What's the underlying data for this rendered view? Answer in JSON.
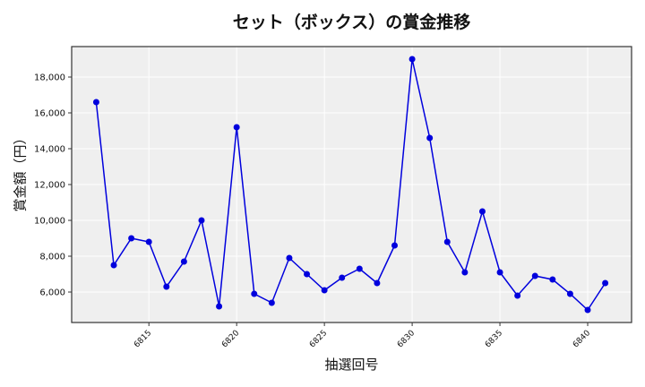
{
  "chart_data": {
    "type": "line",
    "title": "セット（ボックス）の賞金推移",
    "xlabel": "抽選回号",
    "ylabel": "賞金額（円）",
    "x": [
      6812,
      6813,
      6814,
      6815,
      6816,
      6817,
      6818,
      6819,
      6820,
      6821,
      6822,
      6823,
      6824,
      6825,
      6826,
      6827,
      6828,
      6829,
      6830,
      6831,
      6832,
      6833,
      6834,
      6835,
      6836,
      6837,
      6838,
      6839,
      6840,
      6841
    ],
    "series": [
      {
        "name": "賞金額",
        "color": "#0000dd",
        "values": [
          16600,
          7500,
          9000,
          8800,
          6300,
          7700,
          10000,
          5200,
          15200,
          5900,
          5400,
          7900,
          7000,
          6100,
          6800,
          7300,
          6500,
          8600,
          19000,
          14600,
          8800,
          7100,
          10500,
          7100,
          5800,
          6900,
          6700,
          5900,
          5000,
          6500
        ]
      }
    ],
    "xticks": [
      6815,
      6820,
      6825,
      6830,
      6835,
      6840
    ],
    "yticks": [
      6000,
      8000,
      10000,
      12000,
      14000,
      16000,
      18000
    ],
    "ytick_labels": [
      "6,000",
      "8,000",
      "10,000",
      "12,000",
      "14,000",
      "16,000",
      "18,000"
    ],
    "xlim": [
      6810.6,
      6842.5
    ],
    "ylim": [
      4300,
      19700
    ],
    "grid": true,
    "legend": "none"
  },
  "colors": {
    "plot_bg": "#efefef",
    "grid": "#ffffff",
    "line": "#0000dd",
    "frame": "#333333"
  }
}
